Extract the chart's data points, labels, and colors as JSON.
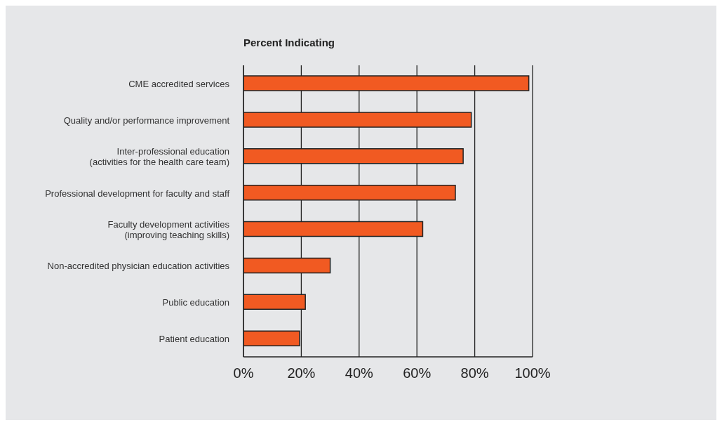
{
  "chart_data": {
    "type": "bar",
    "orientation": "horizontal",
    "title": "Percent Indicating",
    "categories": [
      "CME accredited services",
      "Quality and/or performance improvement",
      "Inter-professional education\n(activities for the health care team)",
      "Professional development for faculty and staff",
      "Faculty development activities\n(improving teaching skills)",
      "Non-accredited physician education activities",
      "Public education",
      "Patient education"
    ],
    "values": [
      98.7,
      78.8,
      76.0,
      73.3,
      62.0,
      30.0,
      21.4,
      19.4
    ],
    "color": "#f15a22",
    "xlim": [
      0,
      100
    ],
    "xticks": [
      {
        "value": 0,
        "label": "0%"
      },
      {
        "value": 20,
        "label": "20%"
      },
      {
        "value": 40,
        "label": "40%"
      },
      {
        "value": 60,
        "label": "60%"
      },
      {
        "value": 80,
        "label": "80%"
      },
      {
        "value": 100,
        "label": "100%"
      }
    ],
    "grid": "x",
    "legend": false
  }
}
